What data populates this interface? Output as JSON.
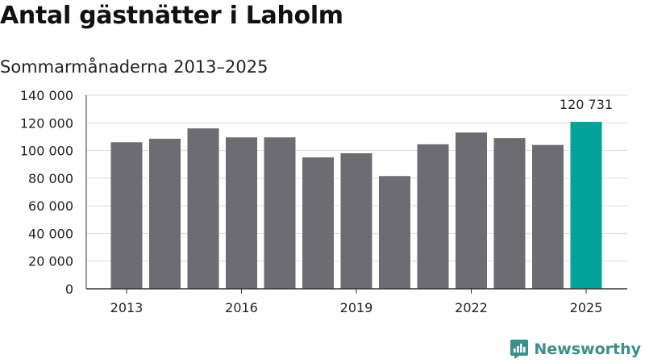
{
  "chart_data": {
    "type": "bar",
    "title": "Antal gästnätter i Laholm",
    "subtitle": "Sommarmånaderna 2013–2025",
    "categories": [
      "2013",
      "2014",
      "2015",
      "2016",
      "2017",
      "2018",
      "2019",
      "2020",
      "2021",
      "2022",
      "2023",
      "2024",
      "2025"
    ],
    "values": [
      106000,
      108500,
      116000,
      109500,
      109500,
      95000,
      98000,
      81500,
      104500,
      113000,
      109000,
      104000,
      120731
    ],
    "x_tick_labels": [
      "2013",
      "2016",
      "2019",
      "2022",
      "2025"
    ],
    "y_ticks": [
      0,
      20000,
      40000,
      60000,
      80000,
      100000,
      120000,
      140000
    ],
    "y_tick_labels": [
      "0",
      "20 000",
      "40 000",
      "60 000",
      "80 000",
      "100 000",
      "120 000",
      "140 000"
    ],
    "ylim": [
      0,
      140000
    ],
    "xlabel": "",
    "ylabel": "",
    "grid": true,
    "highlight_index": 12,
    "highlight_label": "120 731",
    "colors": {
      "bar": "#6d6c72",
      "highlight": "#00a39a",
      "grid": "#dddddd",
      "axis": "#333333"
    }
  },
  "brand": {
    "name": "Newsworthy",
    "icon": "newsworthy-logo-icon",
    "color": "#3c8f8a"
  }
}
